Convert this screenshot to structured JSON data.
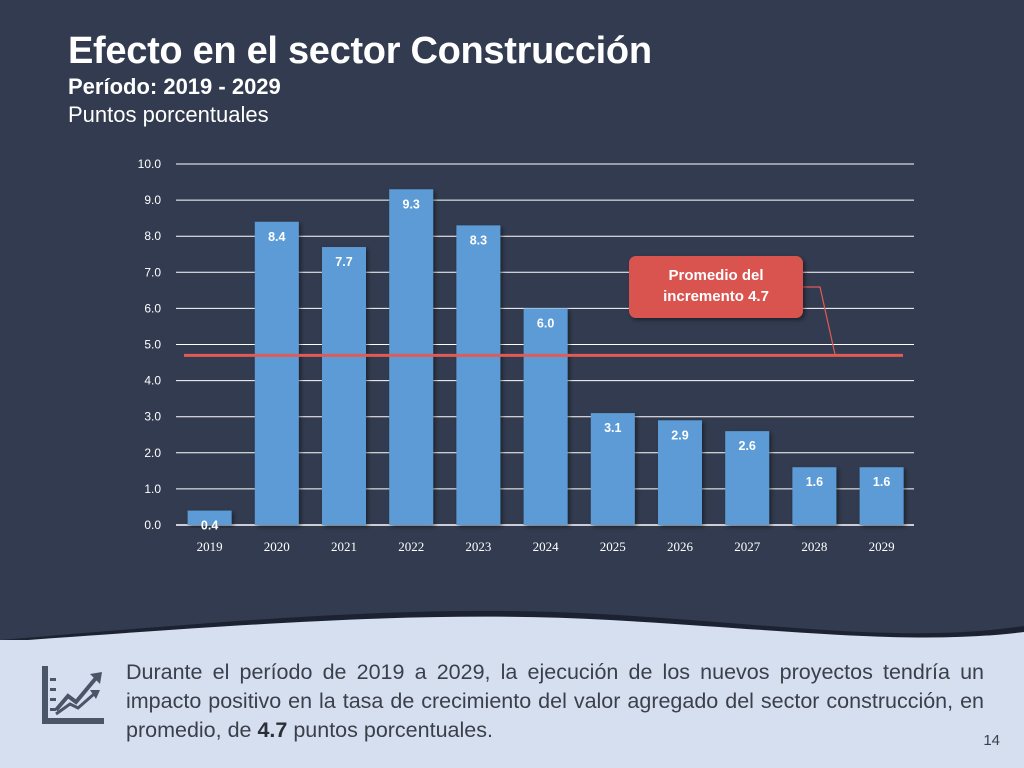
{
  "header": {
    "title": "Efecto en el sector Construcción",
    "subtitle": "Período: 2019 - 2029",
    "units": "Puntos porcentuales"
  },
  "colors": {
    "background": "#323b4f",
    "bar": "#5b9bd5",
    "average_line": "#e05b55",
    "callout": "#d9534f",
    "footer_bg": "#d5dff0"
  },
  "chart_data": {
    "type": "bar",
    "categories": [
      "2019",
      "2020",
      "2021",
      "2022",
      "2023",
      "2024",
      "2025",
      "2026",
      "2027",
      "2028",
      "2029"
    ],
    "values": [
      0.4,
      8.4,
      7.7,
      9.3,
      8.3,
      6.0,
      3.1,
      2.9,
      2.6,
      1.6,
      1.6
    ],
    "value_labels": [
      "0.4",
      "8.4",
      "7.7",
      "9.3",
      "8.3",
      "6.0",
      "3.1",
      "2.9",
      "2.6",
      "1.6",
      "1.6"
    ],
    "ylim": [
      0,
      10
    ],
    "yticks": [
      "0.0",
      "1.0",
      "2.0",
      "3.0",
      "4.0",
      "5.0",
      "6.0",
      "7.0",
      "8.0",
      "9.0",
      "10.0"
    ],
    "grid": true,
    "average": 4.7,
    "annotation": {
      "line1": "Promedio del",
      "line2": "incremento 4.7"
    }
  },
  "footer": {
    "text_before": "Durante el período de 2019 a 2029, la ejecución de los nuevos proyectos tendría un impacto positivo en la tasa de crecimiento del valor agregado del sector construcción, en promedio, de ",
    "text_bold": "4.7",
    "text_after": " puntos porcentuales.",
    "icon": "growth-chart-icon",
    "page_number": "14"
  }
}
